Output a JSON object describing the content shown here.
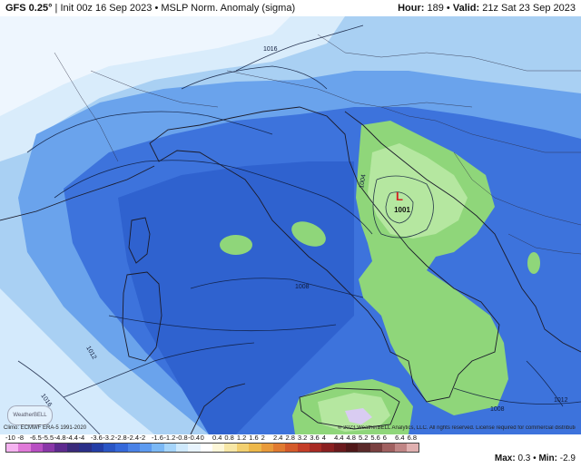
{
  "header": {
    "model": "GFS 0.25°",
    "init": "Init 00z 16 Sep 2023",
    "product": "MSLP Norm. Anomaly (sigma)",
    "separator": "•",
    "hour_label": "Hour:",
    "hour": "189",
    "valid_label": "Valid:",
    "valid": "21z Sat 23 Sep 2023"
  },
  "map": {
    "low_marker": "L",
    "low_pressure": "1001",
    "contours": [
      "1016",
      "1012",
      "1008",
      "1004",
      "1008",
      "1012",
      "1016",
      "1008"
    ]
  },
  "credits": {
    "climo": "Climo: ECMWF ERA-5 1991-2020",
    "copyright": "© 2023 WeatherBELL Analytics, LLC. All rights reserved. License required for commercial distribution.",
    "logo": "WeatherBELL"
  },
  "colorbar": {
    "ticks": [
      "-10",
      "-8",
      "-6.5",
      "-5.5",
      "-4.8",
      "-4.4",
      "-4",
      "-3.6",
      "-3.2",
      "-2.8",
      "-2.4",
      "-2",
      "-1.6",
      "-1.2",
      "-0.8",
      "-0.4",
      "0",
      "0.4",
      "0.8",
      "1.2",
      "1.6",
      "2",
      "2.4",
      "2.8",
      "3.2",
      "3.6",
      "4",
      "4.4",
      "4.8",
      "5.2",
      "5.6",
      "6",
      "6.4",
      "6.8"
    ],
    "colors": [
      "#f5b3f0",
      "#e07ad8",
      "#b84fc2",
      "#8a37a8",
      "#5d2a8e",
      "#3a2a7a",
      "#2a2f88",
      "#233da6",
      "#2a55c4",
      "#3568d9",
      "#4a82e6",
      "#5d9bf0",
      "#7bb8f5",
      "#a5d4fa",
      "#cfe9fc",
      "#e9f4fd",
      "#ffffff",
      "#fdf7d9",
      "#f7e7a6",
      "#f2d070",
      "#edb84a",
      "#e89a3a",
      "#e07a30",
      "#d45a2a",
      "#c43d27",
      "#a82a24",
      "#8a1f20",
      "#6b1a1d",
      "#501819",
      "#5b2a2a",
      "#7a4040",
      "#a06060",
      "#c08585",
      "#e0b0b0"
    ]
  },
  "stats": {
    "max_label": "Max:",
    "max": "0.3",
    "min_label": "Min:",
    "min": "-2.9"
  }
}
